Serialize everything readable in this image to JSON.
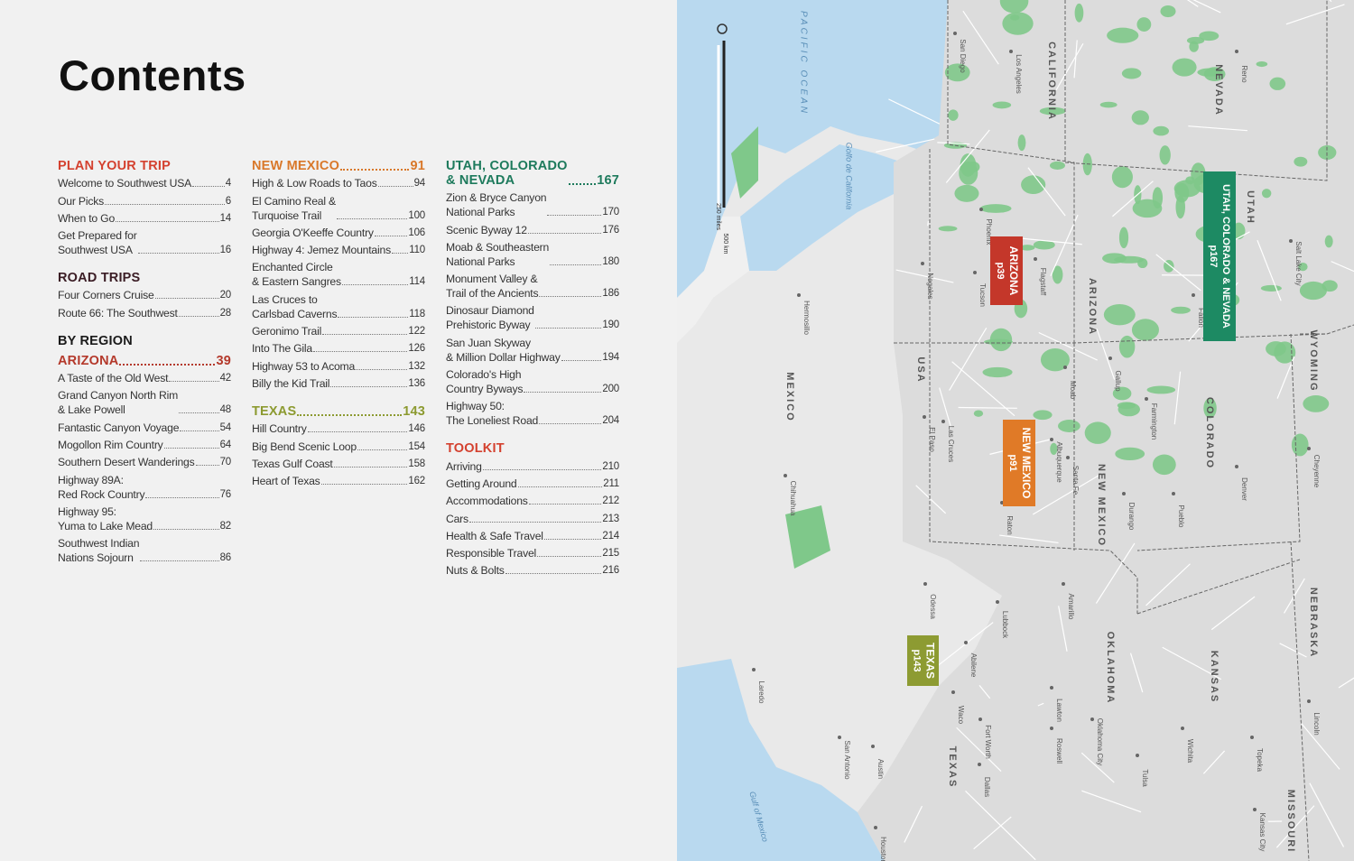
{
  "title": "Contents",
  "colors": {
    "plan": "#d4412f",
    "road": "#3b1d25",
    "region": "#1a1a1a",
    "arizona": "#b4392b",
    "newmexico": "#d9782a",
    "texas": "#8c9a30",
    "utah": "#1d7a5c",
    "toolkit": "#d4412f"
  },
  "columns": [
    [
      {
        "type": "sec",
        "label": "PLAN YOUR TRIP",
        "color": "plan"
      },
      {
        "type": "ent",
        "title": "Welcome to Southwest USA",
        "page": "4"
      },
      {
        "type": "ent",
        "title": "Our Picks",
        "page": "6"
      },
      {
        "type": "ent",
        "title": "When to Go",
        "page": "14"
      },
      {
        "type": "ent",
        "title": "Get Prepared for\nSouthwest USA",
        "page": "16"
      },
      {
        "type": "sec",
        "label": "ROAD TRIPS",
        "color": "road",
        "gap": true
      },
      {
        "type": "ent",
        "title": "Four Corners Cruise",
        "page": "20"
      },
      {
        "type": "ent",
        "title": "Route 66: The Southwest",
        "page": "28"
      },
      {
        "type": "sec",
        "label": "BY REGION",
        "color": "region",
        "gap": true
      },
      {
        "type": "sec",
        "label": "ARIZONA",
        "page": "39",
        "color": "arizona"
      },
      {
        "type": "ent",
        "title": "A Taste of the Old West",
        "page": "42"
      },
      {
        "type": "ent",
        "title": "Grand Canyon North Rim\n& Lake Powell",
        "page": "48"
      },
      {
        "type": "ent",
        "title": "Fantastic Canyon Voyage",
        "page": "54"
      },
      {
        "type": "ent",
        "title": "Mogollon Rim Country",
        "page": "64"
      },
      {
        "type": "ent",
        "title": "Southern Desert Wanderings",
        "page": "70"
      },
      {
        "type": "ent",
        "title": "Highway 89A:\nRed Rock Country",
        "page": "76"
      },
      {
        "type": "ent",
        "title": "Highway 95:\nYuma to Lake Mead",
        "page": "82"
      },
      {
        "type": "ent",
        "title": "Southwest Indian\nNations Sojourn",
        "page": "86"
      }
    ],
    [
      {
        "type": "sec",
        "label": "NEW MEXICO",
        "page": "91",
        "color": "newmexico"
      },
      {
        "type": "ent",
        "title": "High & Low Roads to Taos",
        "page": "94"
      },
      {
        "type": "ent",
        "title": "El Camino Real &\nTurquoise Trail",
        "page": "100"
      },
      {
        "type": "ent",
        "title": "Georgia O'Keeffe Country",
        "page": "106"
      },
      {
        "type": "ent",
        "title": "Highway 4: Jemez Mountains",
        "page": "110"
      },
      {
        "type": "ent",
        "title": "Enchanted Circle\n& Eastern Sangres",
        "page": "114"
      },
      {
        "type": "ent",
        "title": "Las Cruces to\nCarlsbad Caverns",
        "page": "118"
      },
      {
        "type": "ent",
        "title": "Geronimo Trail",
        "page": "122"
      },
      {
        "type": "ent",
        "title": "Into The Gila",
        "page": "126"
      },
      {
        "type": "ent",
        "title": "Highway 53 to Acoma",
        "page": "132"
      },
      {
        "type": "ent",
        "title": "Billy the Kid Trail",
        "page": "136"
      },
      {
        "type": "sec",
        "label": "TEXAS",
        "page": "143",
        "color": "texas",
        "gap": true
      },
      {
        "type": "ent",
        "title": "Hill Country",
        "page": "146"
      },
      {
        "type": "ent",
        "title": "Big Bend Scenic Loop",
        "page": "154"
      },
      {
        "type": "ent",
        "title": "Texas Gulf Coast",
        "page": "158"
      },
      {
        "type": "ent",
        "title": "Heart of Texas",
        "page": "162"
      }
    ],
    [
      {
        "type": "sec",
        "label": "UTAH, COLORADO\n& NEVADA",
        "page": "167",
        "color": "utah"
      },
      {
        "type": "ent",
        "title": "Zion & Bryce Canyon\nNational Parks",
        "page": "170"
      },
      {
        "type": "ent",
        "title": "Scenic Byway 12",
        "page": "176"
      },
      {
        "type": "ent",
        "title": "Moab & Southeastern\nNational Parks",
        "page": "180"
      },
      {
        "type": "ent",
        "title": "Monument Valley &\nTrail of the Ancients",
        "page": "186"
      },
      {
        "type": "ent",
        "title": "Dinosaur Diamond\nPrehistoric Byway",
        "page": "190"
      },
      {
        "type": "ent",
        "title": "San Juan Skyway\n& Million Dollar Highway",
        "page": "194"
      },
      {
        "type": "ent",
        "title": "Colorado's High\nCountry Byways",
        "page": "200"
      },
      {
        "type": "ent",
        "title": "Highway 50:\nThe Loneliest Road",
        "page": "204"
      },
      {
        "type": "sec",
        "label": "TOOLKIT",
        "color": "toolkit",
        "gap": true
      },
      {
        "type": "ent",
        "title": "Arriving",
        "page": "210"
      },
      {
        "type": "ent",
        "title": "Getting Around",
        "page": "211"
      },
      {
        "type": "ent",
        "title": "Accommodations",
        "page": "212"
      },
      {
        "type": "ent",
        "title": "Cars",
        "page": "213"
      },
      {
        "type": "ent",
        "title": "Health & Safe Travel",
        "page": "214"
      },
      {
        "type": "ent",
        "title": "Responsible Travel",
        "page": "215"
      },
      {
        "type": "ent",
        "title": "Nuts & Bolts",
        "page": "216"
      }
    ]
  ],
  "map": {
    "scale": {
      "miles": "250 miles",
      "km": "500 km"
    },
    "regions": [
      {
        "label": "ARIZONA",
        "sub": "p39",
        "color": "#c4372a"
      },
      {
        "label": "NEW MEXICO",
        "sub": "p91",
        "color": "#e07a27"
      },
      {
        "label": "UTAH, COLORADO & NEVADA",
        "sub": "p167",
        "color": "#1d8a63"
      },
      {
        "label": "TEXAS",
        "sub": "p143",
        "color": "#8d9b32"
      }
    ],
    "states": [
      "CALIFORNIA",
      "NEVADA",
      "UTAH",
      "ARIZONA",
      "NEW MEXICO",
      "COLORADO",
      "WYOMING",
      "NEBRASKA",
      "KANSAS",
      "OKLAHOMA",
      "TEXAS",
      "MISSOURI",
      "MEXICO",
      "USA"
    ],
    "water": [
      "PACIFIC OCEAN",
      "Golfo de California",
      "Gulf of Mexico"
    ],
    "cities": [
      "San Diego",
      "Los Angeles",
      "Phoenix",
      "Tucson",
      "Hermosillo",
      "Chihuahua",
      "El Paso",
      "Albuquerque",
      "Santa Fe",
      "Denver",
      "Salt Lake City",
      "Cheyenne",
      "Amarillo",
      "Lubbock",
      "Odessa",
      "San Antonio",
      "Austin",
      "Houston",
      "Dallas",
      "Fort Worth",
      "Oklahoma City",
      "Wichita",
      "Topeka",
      "Kansas City",
      "Lincoln",
      "Tulsa",
      "Pueblo",
      "Flagstaff",
      "Las Cruces",
      "Nogales",
      "Reno",
      "Fallon",
      "Moab",
      "Gallup",
      "Farmington",
      "Durango",
      "Raton",
      "Roswell",
      "Lawton",
      "Waco",
      "Abilene",
      "Laredo"
    ]
  }
}
